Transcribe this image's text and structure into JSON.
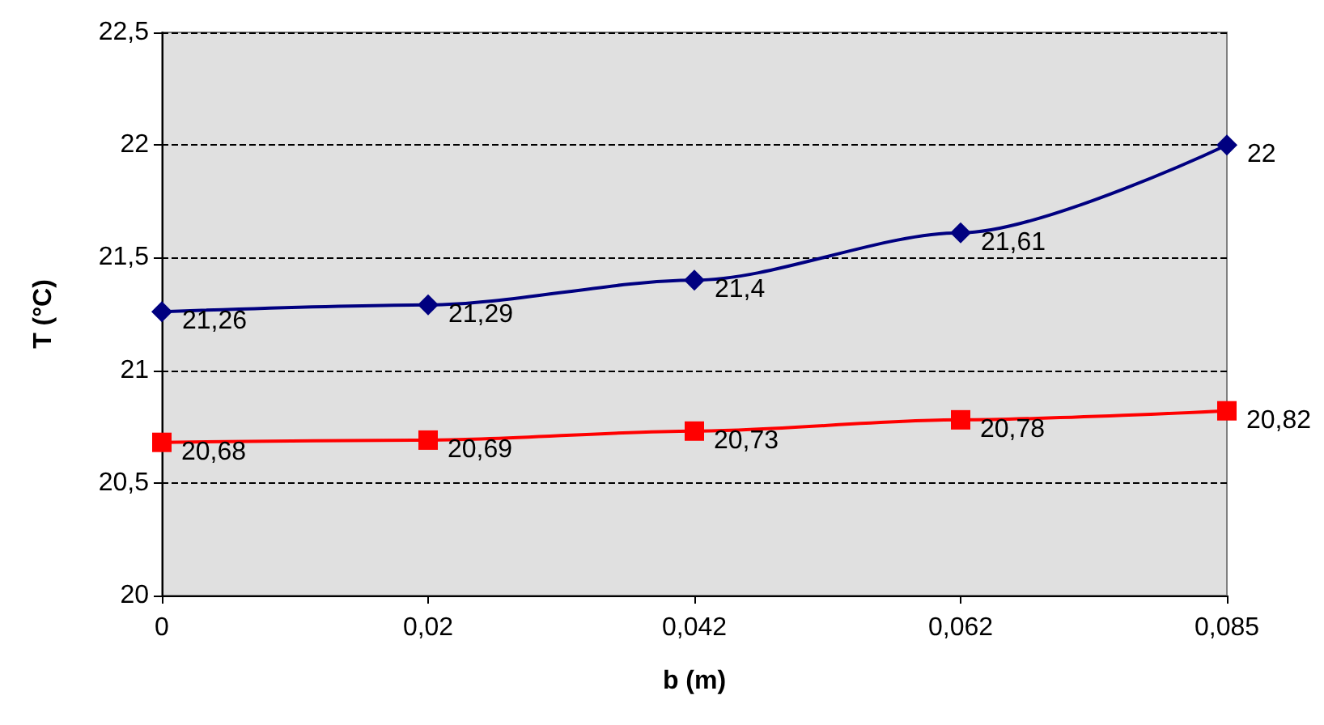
{
  "chart_data": {
    "type": "line",
    "xlabel": "b (m)",
    "ylabel": "T (°C)",
    "categories": [
      "0",
      "0,02",
      "0,042",
      "0,062",
      "0,085"
    ],
    "series": [
      {
        "color": "#000080",
        "marker": "diamond",
        "values": [
          21.26,
          21.29,
          21.4,
          21.61,
          22
        ],
        "value_labels": [
          "21,26",
          "21,29",
          "21,4",
          "21,61",
          "22"
        ]
      },
      {
        "color": "#ff0000",
        "marker": "square",
        "values": [
          20.68,
          20.69,
          20.73,
          20.78,
          20.82
        ],
        "value_labels": [
          "20,68",
          "20,69",
          "20,73",
          "20,78",
          "20,82"
        ]
      }
    ],
    "ylim": [
      20,
      22.5
    ],
    "yticks": [
      20,
      {
        "value": 20.5,
        "label": "20,5"
      },
      21,
      {
        "value": 21.5,
        "label": "21,5"
      },
      22,
      {
        "value": 22.5,
        "label": "22,5"
      }
    ],
    "grid": "y",
    "line_style": "solid"
  }
}
